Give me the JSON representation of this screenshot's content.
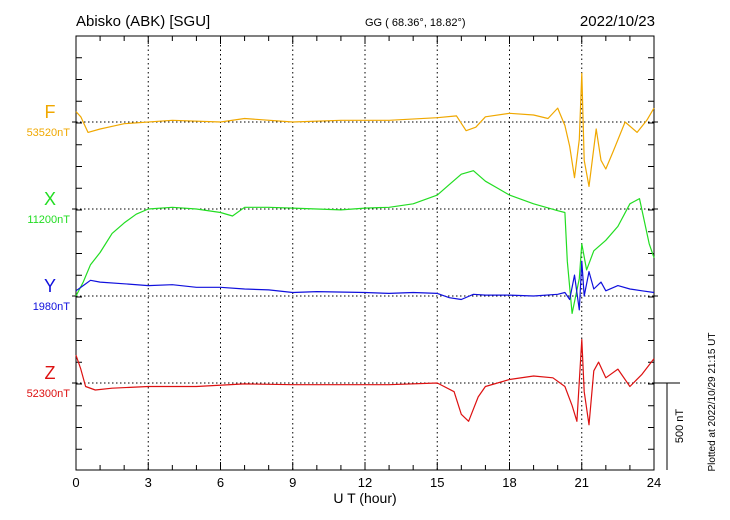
{
  "header": {
    "station": "Abisko (ABK)  [SGU]",
    "coords": "GG ( 68.36°,  18.82°)",
    "date": "2022/10/23"
  },
  "footer": {
    "plotted": "Plotted at 2022/10/29 21:15 UT"
  },
  "chart_data": {
    "type": "line",
    "xlabel": "U T (hour)",
    "xlim": [
      0,
      24
    ],
    "xticks": [
      "0",
      "3",
      "6",
      "9",
      "12",
      "15",
      "18",
      "21",
      "24"
    ],
    "scale_bar": {
      "label": "500 nT",
      "value_nT": 500
    },
    "grid": "dotted vertical lines every 3 hours; dotted baseline per series",
    "colors": {
      "F": "#f0a800",
      "X": "#22dd22",
      "Y": "#1010dd",
      "Z": "#dd1111"
    },
    "series": [
      {
        "name": "F",
        "baseline_label": "53520nT",
        "baseline_nT": 53520,
        "x": [
          0,
          0.2,
          0.5,
          1.0,
          2.0,
          4.0,
          6.0,
          7.0,
          9.0,
          11.0,
          13.0,
          15.0,
          15.8,
          16.2,
          16.6,
          17.0,
          18.0,
          19.0,
          19.6,
          20.0,
          20.3,
          20.5,
          20.7,
          20.9,
          21.0,
          21.1,
          21.3,
          21.6,
          21.8,
          22.0,
          22.3,
          22.8,
          23.3,
          23.7,
          24.0
        ],
        "values": [
          53580,
          53550,
          53460,
          53480,
          53510,
          53530,
          53520,
          53540,
          53520,
          53530,
          53530,
          53545,
          53555,
          53470,
          53490,
          53550,
          53570,
          53560,
          53540,
          53600,
          53500,
          53380,
          53200,
          53420,
          53800,
          53300,
          53150,
          53480,
          53300,
          53250,
          53350,
          53520,
          53460,
          53530,
          53600
        ]
      },
      {
        "name": "X",
        "baseline_label": "11200nT",
        "baseline_nT": 11200,
        "x": [
          0,
          0.3,
          0.6,
          1.0,
          1.5,
          2.0,
          2.5,
          3.0,
          4.0,
          5.0,
          6.0,
          6.5,
          7.0,
          8.0,
          9.0,
          10.0,
          11.0,
          12.0,
          13.0,
          14.0,
          15.0,
          15.5,
          16.0,
          16.5,
          17.0,
          17.5,
          18.0,
          19.0,
          20.0,
          20.3,
          20.4,
          20.6,
          20.9,
          21.0,
          21.2,
          21.5,
          22.0,
          22.5,
          23.0,
          23.4,
          23.8,
          24.0
        ],
        "values": [
          10700,
          10780,
          10880,
          10950,
          11060,
          11120,
          11170,
          11200,
          11210,
          11200,
          11180,
          11160,
          11210,
          11210,
          11205,
          11200,
          11195,
          11205,
          11210,
          11230,
          11280,
          11340,
          11400,
          11420,
          11360,
          11320,
          11280,
          11230,
          11190,
          11180,
          10900,
          10600,
          10800,
          11000,
          10850,
          10960,
          11020,
          11100,
          11230,
          11260,
          11000,
          10920
        ]
      },
      {
        "name": "Y",
        "baseline_label": "1980nT",
        "baseline_nT": 1980,
        "x": [
          0,
          0.3,
          0.6,
          1.0,
          2.0,
          3.0,
          4.0,
          5.0,
          6.0,
          7.0,
          8.0,
          9.0,
          10.0,
          12.0,
          13.0,
          14.0,
          15.0,
          15.5,
          16.0,
          16.5,
          17.0,
          18.0,
          19.0,
          20.0,
          20.3,
          20.5,
          20.7,
          20.9,
          21.0,
          21.1,
          21.3,
          21.5,
          21.8,
          22.0,
          22.5,
          23.0,
          23.5,
          24.0
        ],
        "values": [
          2010,
          2040,
          2070,
          2060,
          2050,
          2040,
          2045,
          2030,
          2030,
          2020,
          2015,
          2000,
          2005,
          2000,
          1995,
          2000,
          1995,
          1970,
          1960,
          1990,
          1985,
          1985,
          1980,
          1990,
          2000,
          1960,
          2100,
          1900,
          2180,
          1980,
          2120,
          2020,
          2060,
          2010,
          2040,
          2020,
          2010,
          2000
        ]
      },
      {
        "name": "Z",
        "baseline_label": "52300nT",
        "baseline_nT": 52300,
        "x": [
          0,
          0.2,
          0.4,
          0.8,
          1.5,
          3.0,
          5.0,
          7.0,
          9.0,
          11.0,
          13.0,
          15.0,
          15.7,
          16.0,
          16.3,
          16.7,
          17.0,
          17.5,
          18.0,
          19.0,
          19.8,
          20.3,
          20.6,
          20.8,
          21.0,
          21.1,
          21.3,
          21.5,
          21.7,
          22.0,
          22.5,
          23.0,
          23.5,
          24.0
        ],
        "values": [
          52460,
          52380,
          52280,
          52260,
          52270,
          52280,
          52280,
          52295,
          52290,
          52290,
          52290,
          52300,
          52250,
          52120,
          52080,
          52220,
          52280,
          52300,
          52320,
          52340,
          52330,
          52280,
          52170,
          52080,
          52550,
          52250,
          52060,
          52370,
          52420,
          52330,
          52380,
          52280,
          52350,
          52440
        ]
      }
    ]
  }
}
